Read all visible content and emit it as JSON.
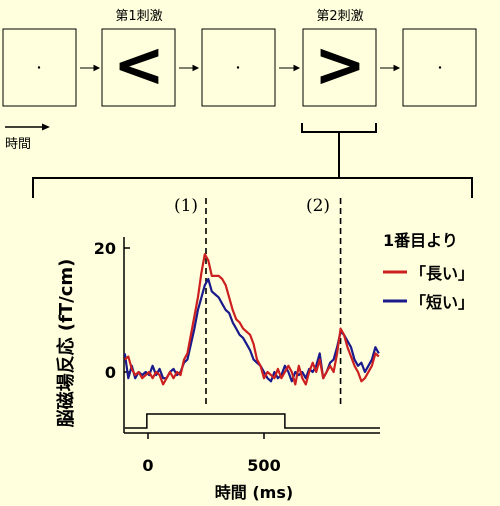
{
  "header": {
    "stimulus1_label": "第1刺激",
    "stimulus2_label": "第2刺激",
    "time_label": "時間"
  },
  "stimuli": {
    "stimulus1_glyph": "<",
    "stimulus2_glyph": ">"
  },
  "markers": {
    "marker1": "(1)",
    "marker2": "(2)"
  },
  "legend": {
    "title": "1番目より",
    "items": [
      {
        "label": "「長い」",
        "color": "#CC1F1F"
      },
      {
        "label": "「短い」",
        "color": "#1A1A8C"
      }
    ]
  },
  "chart_data": {
    "type": "line",
    "ylabel": "脳磁場反応 (fT/cm)",
    "xlabel": "時間 (ms)",
    "x_ticks": [
      "0",
      "500"
    ],
    "y_ticks": [
      "0",
      "20"
    ],
    "xlim": [
      -100,
      1000
    ],
    "ylim": [
      -5,
      22
    ],
    "vlines": [
      250,
      830
    ],
    "stimulus_trace": [
      [
        -100,
        0
      ],
      [
        -5,
        0
      ],
      [
        -5,
        1
      ],
      [
        590,
        1
      ],
      [
        590,
        0
      ],
      [
        1000,
        0
      ]
    ],
    "series": [
      {
        "name": "「長い」",
        "color": "#CC1F1F",
        "x": [
          -100,
          -85,
          -70,
          -55,
          -40,
          -25,
          -10,
          5,
          20,
          35,
          50,
          65,
          80,
          95,
          110,
          125,
          140,
          155,
          170,
          185,
          200,
          215,
          230,
          245,
          260,
          275,
          290,
          305,
          320,
          335,
          350,
          365,
          380,
          395,
          410,
          425,
          440,
          455,
          470,
          485,
          500,
          515,
          530,
          545,
          560,
          575,
          590,
          605,
          620,
          635,
          650,
          665,
          680,
          695,
          710,
          725,
          740,
          755,
          770,
          785,
          800,
          815,
          830,
          845,
          860,
          875,
          890,
          905,
          920,
          935,
          950,
          965,
          980,
          995
        ],
        "y": [
          2,
          2.5,
          0.5,
          -0.5,
          0,
          -1,
          -0.5,
          0,
          -1,
          0,
          -0.5,
          -2,
          -1,
          0,
          -1,
          0,
          -0.5,
          2,
          3,
          6,
          9,
          12,
          16,
          19,
          18,
          15.5,
          15.5,
          15.5,
          15,
          14,
          12,
          10,
          8.5,
          8,
          7,
          6.5,
          6,
          4.5,
          2,
          1,
          -1,
          0,
          -0.5,
          -1,
          0.5,
          -1,
          0,
          1,
          0,
          -2,
          1,
          -1,
          -2,
          0,
          1.5,
          0,
          2,
          -1,
          0,
          1,
          0,
          3,
          7,
          6,
          4,
          2.5,
          1,
          0,
          -1.5,
          -1,
          0,
          1,
          3,
          2.5
        ]
      },
      {
        "name": "「短い」",
        "color": "#1A1A8C",
        "x": [
          -100,
          -85,
          -70,
          -55,
          -40,
          -25,
          -10,
          5,
          20,
          35,
          50,
          65,
          80,
          95,
          110,
          125,
          140,
          155,
          170,
          185,
          200,
          215,
          230,
          245,
          260,
          275,
          290,
          305,
          320,
          335,
          350,
          365,
          380,
          395,
          410,
          425,
          440,
          455,
          470,
          485,
          500,
          515,
          530,
          545,
          560,
          575,
          590,
          605,
          620,
          635,
          650,
          665,
          680,
          695,
          710,
          725,
          740,
          755,
          770,
          785,
          800,
          815,
          830,
          845,
          860,
          875,
          890,
          905,
          920,
          935,
          950,
          965,
          980,
          995
        ],
        "y": [
          3,
          -1,
          1,
          -1,
          0,
          -0.5,
          0,
          -0.5,
          1,
          -0.5,
          0.5,
          -1,
          -1,
          0,
          0.5,
          -0.5,
          0,
          1.5,
          2,
          4.5,
          7,
          10,
          12,
          14,
          15,
          13,
          12.5,
          12,
          11,
          10,
          9.5,
          8,
          7,
          6,
          5.5,
          4.5,
          3.5,
          2,
          1.5,
          1,
          0,
          -1,
          -1.5,
          0,
          -1,
          -0.5,
          1,
          0,
          -1.5,
          0,
          -0.5,
          0,
          -1,
          0.5,
          0,
          1,
          3,
          -1,
          0,
          1.5,
          2,
          4,
          6.5,
          6,
          5,
          4,
          2,
          1,
          1.5,
          0,
          1,
          2,
          4,
          3
        ]
      }
    ]
  }
}
